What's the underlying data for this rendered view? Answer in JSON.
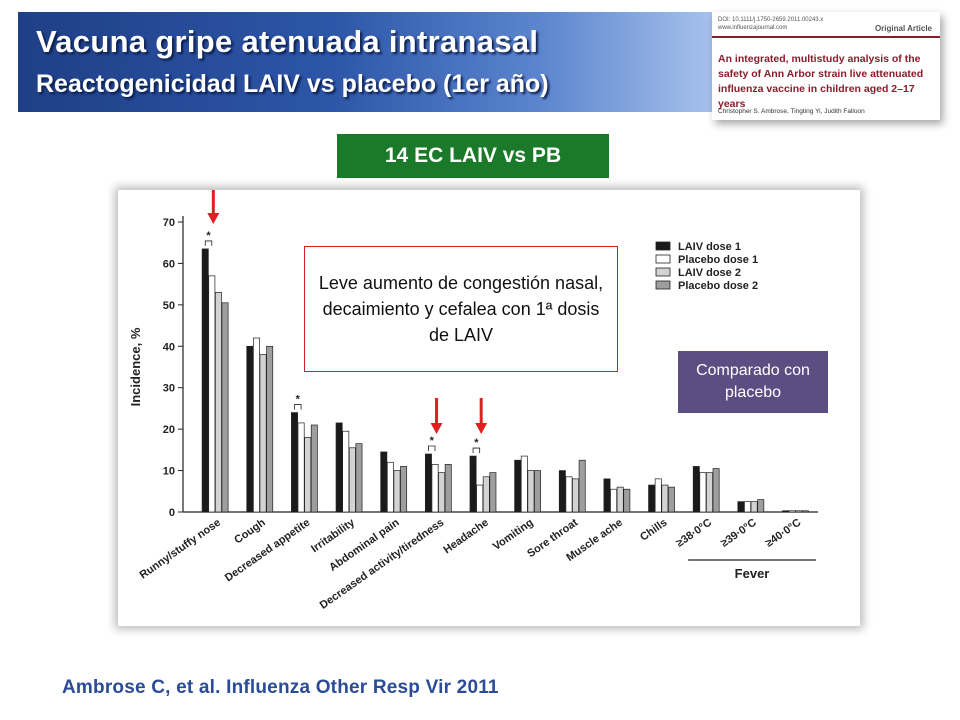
{
  "header": {
    "title": "Vacuna gripe atenuada intranasal",
    "subtitle": "Reactogenicidad LAIV vs placebo (1er año)"
  },
  "paper": {
    "meta_line_1": "DOI: 10.1111/j.1750-2659.2011.00243.x",
    "meta_line_2": "www.influenzajournal.com",
    "label": "Original Article",
    "title": "An integrated, multistudy analysis of the safety of Ann Arbor strain live attenuated influenza vaccine in children aged 2–17 years",
    "authors": "Christopher S. Ambrose, Tingting Yi, Judith Falloon"
  },
  "badge": {
    "label": "14 EC LAIV vs PB",
    "color": "#1a7a2a"
  },
  "callout": {
    "text": "Leve aumento de congestión nasal, decaimiento y cefalea con 1ª dosis de LAIV"
  },
  "comparison": {
    "label": "Comparado con placebo",
    "color": "#5c4e83"
  },
  "citation": "Ambrose C, et al. Influenza Other Resp Vir 2011",
  "chart_data": {
    "type": "bar",
    "ylabel": "Incidence, %",
    "ylim": [
      0,
      70
    ],
    "yticks": [
      0,
      10,
      20,
      30,
      40,
      50,
      60,
      70
    ],
    "categories": [
      "Runny/stuffy nose",
      "Cough",
      "Decreased appetite",
      "Irritability",
      "Abdominal pain",
      "Decreased activity/tiredness",
      "Headache",
      "Vomiting",
      "Sore throat",
      "Muscle ache",
      "Chills",
      "≥38·0°C",
      "≥39·0°C",
      "≥40·0°C"
    ],
    "group_label": "Fever",
    "group_categories": [
      "≥38·0°C",
      "≥39·0°C",
      "≥40·0°C"
    ],
    "series": [
      {
        "name": "LAIV dose 1",
        "color": "#1a1a1a",
        "values": [
          63.5,
          40,
          24,
          21.5,
          14.5,
          14,
          13.5,
          12.5,
          10,
          8,
          6.5,
          11,
          2.5,
          0.3
        ]
      },
      {
        "name": "Placebo dose 1",
        "color": "#ffffff",
        "values": [
          57,
          42,
          21.5,
          19.5,
          12,
          11.5,
          6.5,
          13.5,
          8.5,
          5.5,
          8,
          9.5,
          2.5,
          0.3
        ]
      },
      {
        "name": "LAIV dose 2",
        "color": "#d3d3d3",
        "values": [
          53,
          38,
          18,
          15.5,
          10,
          9.5,
          8.5,
          10,
          8,
          6,
          6.5,
          9.5,
          2.5,
          0.3
        ]
      },
      {
        "name": "Placebo dose 2",
        "color": "#9e9e9e",
        "values": [
          50.5,
          40,
          21,
          16.5,
          11,
          11.5,
          9.5,
          10,
          12.5,
          5.5,
          6,
          10.5,
          3,
          0.3
        ]
      }
    ],
    "significance_markers": [
      {
        "category": "Runny/stuffy nose",
        "label": "*"
      },
      {
        "category": "Decreased appetite",
        "label": "*"
      },
      {
        "category": "Decreased activity/tiredness",
        "label": "*"
      },
      {
        "category": "Headache",
        "label": "*"
      }
    ],
    "highlight_arrows": [
      "Runny/stuffy nose",
      "Decreased activity/tiredness",
      "Headache"
    ],
    "legend_placement": "top-right"
  }
}
